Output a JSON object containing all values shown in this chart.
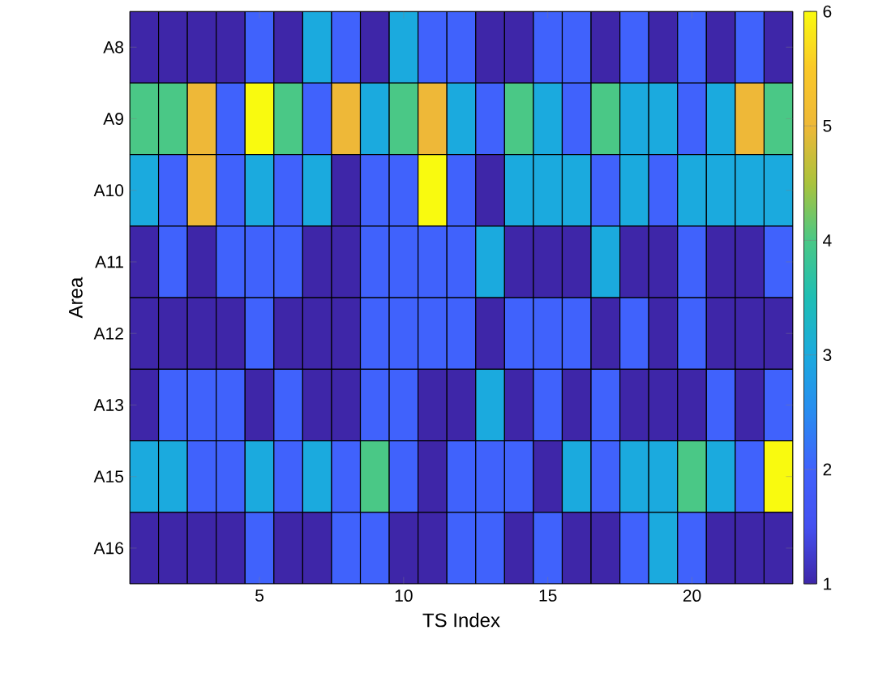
{
  "chart_data": {
    "type": "heatmap",
    "xlabel": "TS Index",
    "ylabel": "Area",
    "x": [
      1,
      2,
      3,
      4,
      5,
      6,
      7,
      8,
      9,
      10,
      11,
      12,
      13,
      14,
      15,
      16,
      17,
      18,
      19,
      20,
      21,
      22,
      23
    ],
    "xlim": [
      0.5,
      23.5
    ],
    "xticks": [
      5,
      10,
      15,
      20
    ],
    "y_categories": [
      "A8",
      "A9",
      "A10",
      "A11",
      "A12",
      "A13",
      "A15",
      "A16"
    ],
    "cells": [
      [
        1,
        1,
        1,
        1,
        2,
        1,
        3,
        2,
        1,
        3,
        2,
        2,
        1,
        1,
        2,
        2,
        1,
        2,
        1,
        2,
        1,
        2,
        1
      ],
      [
        4,
        4,
        5,
        2,
        6,
        4,
        2,
        5,
        3,
        4,
        5,
        3,
        2,
        4,
        3,
        2,
        4,
        3,
        3,
        2,
        3,
        5,
        4
      ],
      [
        3,
        2,
        5,
        2,
        3,
        2,
        3,
        1,
        2,
        2,
        6,
        2,
        1,
        3,
        3,
        3,
        2,
        3,
        2,
        3,
        3,
        3,
        3
      ],
      [
        1,
        2,
        1,
        2,
        2,
        2,
        1,
        1,
        2,
        2,
        2,
        2,
        3,
        1,
        1,
        1,
        3,
        1,
        1,
        2,
        1,
        1,
        2
      ],
      [
        1,
        1,
        1,
        1,
        2,
        1,
        1,
        1,
        2,
        2,
        2,
        2,
        1,
        2,
        2,
        2,
        1,
        2,
        1,
        2,
        1,
        1,
        1
      ],
      [
        1,
        2,
        2,
        2,
        1,
        2,
        1,
        1,
        2,
        2,
        1,
        1,
        3,
        1,
        2,
        1,
        2,
        1,
        1,
        1,
        2,
        1,
        2
      ],
      [
        3,
        3,
        2,
        2,
        3,
        2,
        3,
        2,
        4,
        2,
        1,
        2,
        2,
        2,
        1,
        3,
        2,
        3,
        3,
        4,
        3,
        2,
        6
      ],
      [
        1,
        1,
        1,
        1,
        2,
        1,
        1,
        2,
        2,
        1,
        1,
        2,
        2,
        1,
        2,
        1,
        1,
        2,
        3,
        2,
        1,
        1,
        1
      ]
    ],
    "clim": [
      1,
      6
    ],
    "cticks": [
      1,
      2,
      3,
      4,
      5,
      6
    ]
  }
}
